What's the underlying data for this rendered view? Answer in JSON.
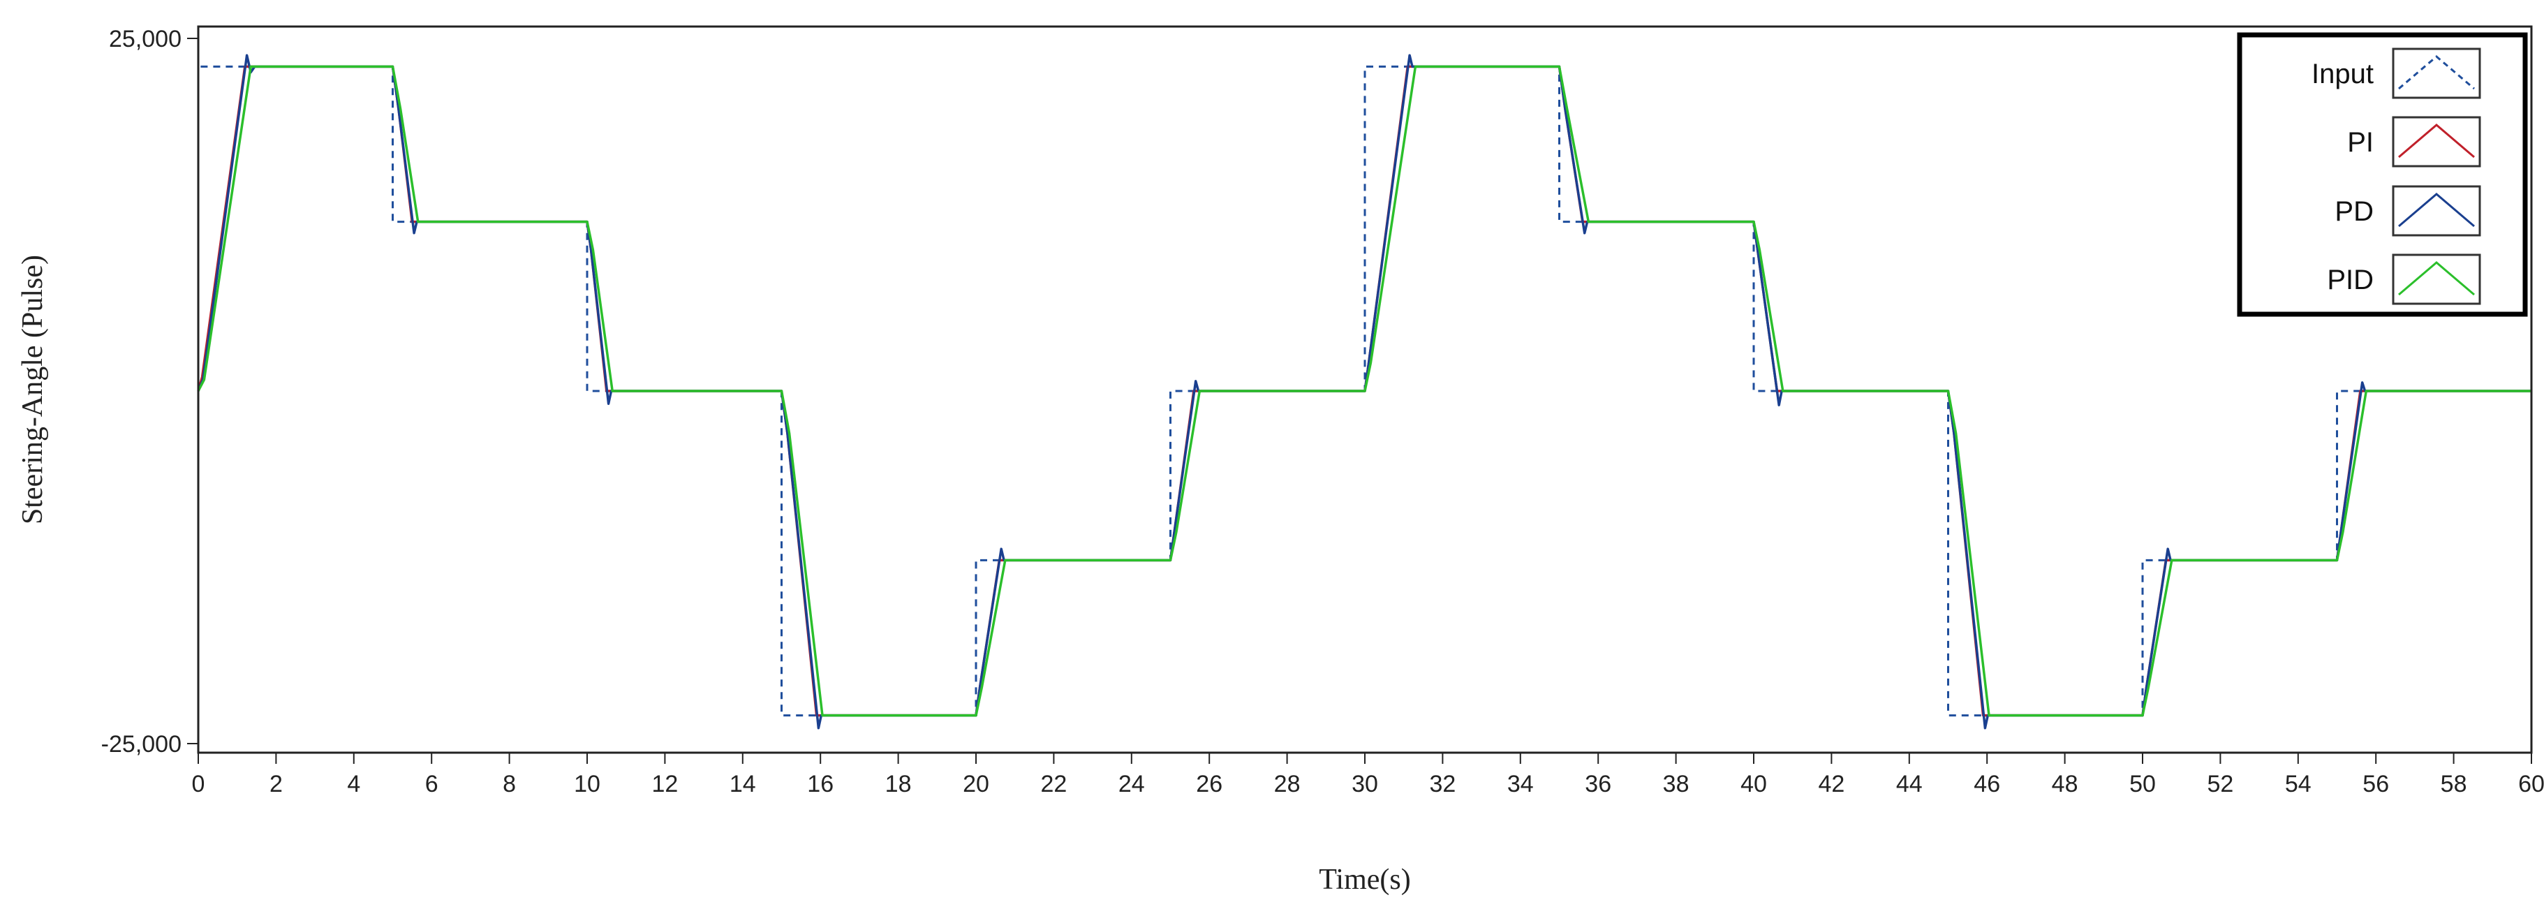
{
  "chart_data": {
    "type": "line",
    "title": "",
    "xlabel": "Time(s)",
    "ylabel": "Steering-Angle (Pulse)",
    "xlim": [
      0,
      60
    ],
    "ylim": [
      -25000,
      25000
    ],
    "x_ticks": [
      0,
      2,
      4,
      6,
      8,
      10,
      12,
      14,
      16,
      18,
      20,
      22,
      24,
      26,
      28,
      30,
      32,
      34,
      36,
      38,
      40,
      42,
      44,
      46,
      48,
      50,
      52,
      54,
      56,
      58,
      60
    ],
    "y_tick_labels": [
      "25,000",
      "-25,000"
    ],
    "y_tick_values": [
      25000,
      -25000
    ],
    "grid": false,
    "legend_position": "top-right",
    "series": [
      {
        "name": "Input",
        "color": "#1f4e9c",
        "style": "dashed",
        "x": [
          0,
          0,
          5,
          5,
          10,
          10,
          15,
          15,
          20,
          20,
          25,
          25,
          30,
          30,
          35,
          35,
          40,
          40,
          45,
          45,
          50,
          50,
          55,
          55,
          60
        ],
        "y": [
          0,
          23000,
          23000,
          12000,
          12000,
          0,
          0,
          -23000,
          -23000,
          -12000,
          -12000,
          0,
          0,
          23000,
          23000,
          12000,
          12000,
          0,
          0,
          -23000,
          -23000,
          -12000,
          -12000,
          0,
          0
        ]
      },
      {
        "name": "PI",
        "color": "#c0202a",
        "style": "solid",
        "x": [
          0,
          0.1,
          1.2,
          5,
          5.15,
          5.5,
          10,
          10.1,
          10.5,
          15,
          15.15,
          15.9,
          20,
          20.1,
          20.6,
          25,
          25.1,
          25.6,
          30,
          30.1,
          31.1,
          35,
          35.15,
          35.6,
          40,
          40.1,
          40.6,
          45,
          45.15,
          45.9,
          50,
          50.1,
          50.6,
          55,
          55.1,
          55.6,
          60
        ],
        "y": [
          0,
          1000,
          23000,
          23000,
          20000,
          12000,
          12000,
          10000,
          0,
          0,
          -3000,
          -23000,
          -23000,
          -21000,
          -12000,
          -12000,
          -10000,
          0,
          0,
          2000,
          23000,
          23000,
          20000,
          12000,
          12000,
          10000,
          0,
          0,
          -3000,
          -23000,
          -23000,
          -21000,
          -12000,
          -12000,
          -10000,
          0,
          0
        ]
      },
      {
        "name": "PD",
        "color": "#1a3f8f",
        "style": "solid",
        "x": [
          0,
          0.12,
          1.25,
          1.35,
          1.45,
          5,
          5.15,
          5.55,
          5.62,
          10,
          10.1,
          10.55,
          10.62,
          15,
          15.15,
          15.95,
          16.02,
          20,
          20.1,
          20.65,
          20.72,
          25,
          25.1,
          25.65,
          25.72,
          30,
          30.1,
          31.15,
          31.22,
          35,
          35.15,
          35.65,
          35.72,
          40,
          40.1,
          40.65,
          40.72,
          45,
          45.15,
          45.95,
          46.02,
          50,
          50.1,
          50.65,
          50.72,
          55,
          55.1,
          55.65,
          55.72,
          60
        ],
        "y": [
          0,
          800,
          23800,
          22600,
          23000,
          23000,
          20000,
          11200,
          12000,
          12000,
          10000,
          -900,
          0,
          0,
          -3000,
          -23900,
          -23000,
          -23000,
          -21000,
          -11200,
          -12000,
          -12000,
          -10000,
          700,
          0,
          0,
          2000,
          23800,
          23000,
          23000,
          20000,
          11200,
          12000,
          12000,
          10000,
          -1000,
          0,
          0,
          -3000,
          -23900,
          -23000,
          -23000,
          -21000,
          -11200,
          -12000,
          -12000,
          -10000,
          600,
          0,
          0
        ]
      },
      {
        "name": "PID",
        "color": "#2bbf2b",
        "style": "solid",
        "x": [
          0,
          0.15,
          1.35,
          5,
          5.2,
          5.65,
          10,
          10.15,
          10.65,
          15,
          15.2,
          16.05,
          20,
          20.15,
          20.75,
          25,
          25.15,
          25.75,
          30,
          30.15,
          31.3,
          35,
          35.2,
          35.75,
          40,
          40.15,
          40.75,
          45,
          45.2,
          46.05,
          50,
          50.15,
          50.75,
          55,
          55.15,
          55.75,
          60
        ],
        "y": [
          0,
          800,
          23000,
          23000,
          20000,
          12000,
          12000,
          10000,
          0,
          0,
          -3000,
          -23000,
          -23000,
          -21000,
          -12000,
          -12000,
          -10000,
          0,
          0,
          2000,
          23000,
          23000,
          20000,
          12000,
          12000,
          10000,
          0,
          0,
          -3000,
          -23000,
          -23000,
          -21000,
          -12000,
          -12000,
          -10000,
          0,
          0
        ]
      }
    ]
  }
}
